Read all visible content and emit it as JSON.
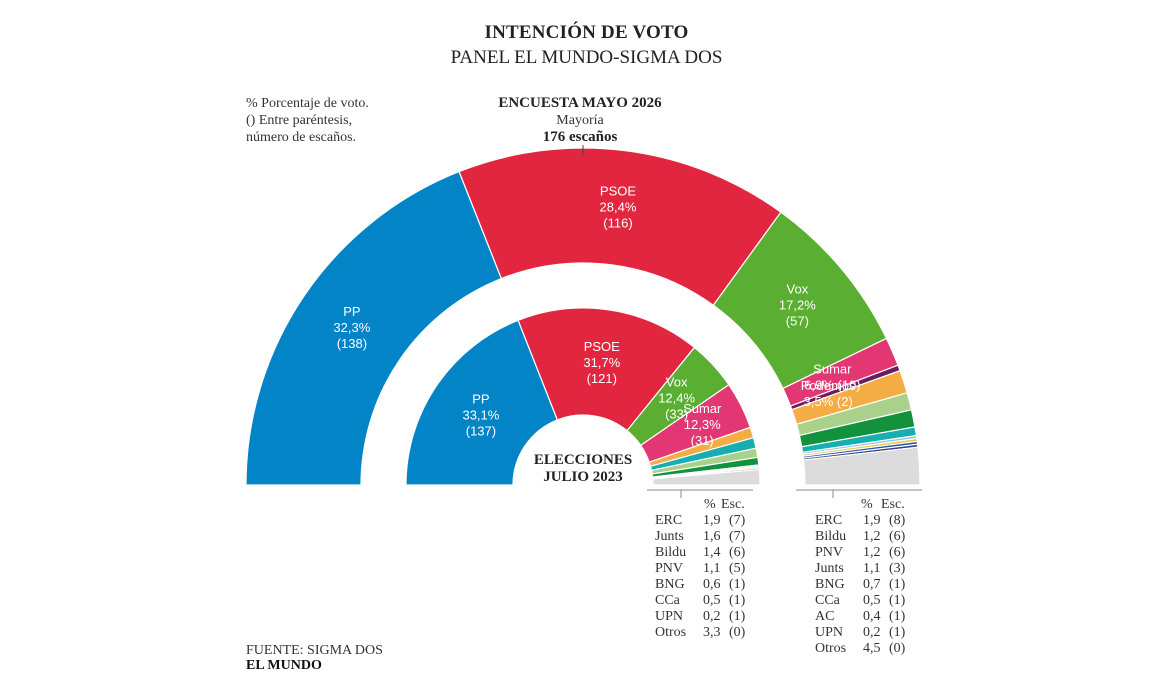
{
  "header": {
    "title": "INTENCIÓN DE VOTO",
    "subtitle": "PANEL EL MUNDO-SIGMA DOS"
  },
  "notes": {
    "line1": "% Porcentaje de voto.",
    "line2": "() Entre paréntesis,",
    "line3": "número de escaños."
  },
  "survey": {
    "title": "ENCUESTA MAYO 2026",
    "majority_label": "Mayoría",
    "majority_seats": "176 escaños"
  },
  "center": {
    "line1": "ELECCIONES",
    "line2": "JULIO 2023"
  },
  "footer": {
    "source": "FUENTE: SIGMA DOS",
    "brand": "EL MUNDO"
  },
  "tables": {
    "elections": {
      "head_pct": "%",
      "head_esc": "Esc.",
      "rows": [
        {
          "name": "ERC",
          "pct": "1,9",
          "seats": "(7)"
        },
        {
          "name": "Junts",
          "pct": "1,6",
          "seats": "(7)"
        },
        {
          "name": "Bildu",
          "pct": "1,4",
          "seats": "(6)"
        },
        {
          "name": "PNV",
          "pct": "1,1",
          "seats": "(5)"
        },
        {
          "name": "BNG",
          "pct": "0,6",
          "seats": "(1)"
        },
        {
          "name": "CCa",
          "pct": "0,5",
          "seats": "(1)"
        },
        {
          "name": "UPN",
          "pct": "0,2",
          "seats": "(1)"
        },
        {
          "name": "Otros",
          "pct": "3,3",
          "seats": "(0)"
        }
      ]
    },
    "survey": {
      "head_pct": "%",
      "head_esc": "Esc.",
      "rows": [
        {
          "name": "ERC",
          "pct": "1,9",
          "seats": "(8)"
        },
        {
          "name": "Bildu",
          "pct": "1,2",
          "seats": "(6)"
        },
        {
          "name": "PNV",
          "pct": "1,2",
          "seats": "(6)"
        },
        {
          "name": "Junts",
          "pct": "1,1",
          "seats": "(3)"
        },
        {
          "name": "BNG",
          "pct": "0,7",
          "seats": "(1)"
        },
        {
          "name": "CCa",
          "pct": "0,5",
          "seats": "(1)"
        },
        {
          "name": "AC",
          "pct": "0,4",
          "seats": "(1)"
        },
        {
          "name": "UPN",
          "pct": "0,2",
          "seats": "(1)"
        },
        {
          "name": "Otros",
          "pct": "4,5",
          "seats": "(0)"
        }
      ]
    }
  },
  "chart_data": [
    {
      "type": "pie",
      "title": "ENCUESTA MAYO 2026",
      "series": [
        {
          "name": "PP",
          "pct": 32.3,
          "seats": 138,
          "label": "PP",
          "value_label": "32,3%",
          "seats_label": "(138)",
          "color": "#0284c7"
        },
        {
          "name": "PSOE",
          "pct": 28.4,
          "seats": 116,
          "label": "PSOE",
          "value_label": "28,4%",
          "seats_label": "(116)",
          "color": "#e3263f"
        },
        {
          "name": "Vox",
          "pct": 17.2,
          "seats": 57,
          "label": "Vox",
          "value_label": "17,2%",
          "seats_label": "(57)",
          "color": "#5aaf32"
        },
        {
          "name": "Sumar",
          "pct": 6.9,
          "seats": 10,
          "label": "Sumar",
          "value_label": "6,9% (10)",
          "seats_label": "",
          "color": "#e23773"
        },
        {
          "name": "Podemos",
          "pct": 3.5,
          "seats": 2,
          "label": "Podemos",
          "value_label": "3,5% (2)",
          "seats_label": "",
          "color": "#6a1e5c"
        },
        {
          "name": "ERC",
          "pct": 1.9,
          "seats": 8,
          "color": "#f4ad44"
        },
        {
          "name": "Bildu",
          "pct": 1.2,
          "seats": 6,
          "color": "#a9d18a"
        },
        {
          "name": "PNV",
          "pct": 1.2,
          "seats": 6,
          "color": "#12923c"
        },
        {
          "name": "Junts",
          "pct": 1.1,
          "seats": 3,
          "color": "#16aeb0"
        },
        {
          "name": "BNG",
          "pct": 0.7,
          "seats": 1,
          "color": "#8ec9e8"
        },
        {
          "name": "CCa",
          "pct": 0.5,
          "seats": 1,
          "color": "#f2c43d"
        },
        {
          "name": "AC",
          "pct": 0.4,
          "seats": 1,
          "color": "#1f5aa6"
        },
        {
          "name": "UPN",
          "pct": 0.2,
          "seats": 1,
          "color": "#3a3f8c"
        },
        {
          "name": "Otros",
          "pct": 4.5,
          "seats": 0,
          "color": "#dcdcdc"
        }
      ]
    },
    {
      "type": "pie",
      "title": "ELECCIONES JULIO 2023",
      "series": [
        {
          "name": "PP",
          "pct": 33.1,
          "seats": 137,
          "label": "PP",
          "value_label": "33,1%",
          "seats_label": "(137)",
          "color": "#0284c7"
        },
        {
          "name": "PSOE",
          "pct": 31.7,
          "seats": 121,
          "label": "PSOE",
          "value_label": "31,7%",
          "seats_label": "(121)",
          "color": "#e3263f"
        },
        {
          "name": "Vox",
          "pct": 12.4,
          "seats": 33,
          "label": "Vox",
          "value_label": "12,4%",
          "seats_label": "(33)",
          "color": "#5aaf32"
        },
        {
          "name": "Sumar",
          "pct": 12.3,
          "seats": 31,
          "label": "Sumar",
          "value_label": "12,3%",
          "seats_label": "(31)",
          "color": "#e23773"
        },
        {
          "name": "ERC",
          "pct": 1.9,
          "seats": 7,
          "color": "#f4ad44"
        },
        {
          "name": "Junts",
          "pct": 1.6,
          "seats": 7,
          "color": "#16aeb0"
        },
        {
          "name": "Bildu",
          "pct": 1.4,
          "seats": 6,
          "color": "#a9d18a"
        },
        {
          "name": "PNV",
          "pct": 1.1,
          "seats": 5,
          "color": "#12923c"
        },
        {
          "name": "BNG",
          "pct": 0.6,
          "seats": 1,
          "color": "#8ec9e8"
        },
        {
          "name": "CCa",
          "pct": 0.5,
          "seats": 1,
          "color": "#f2c43d"
        },
        {
          "name": "UPN",
          "pct": 0.2,
          "seats": 1,
          "color": "#3a3f8c"
        },
        {
          "name": "Otros",
          "pct": 3.3,
          "seats": 0,
          "color": "#dcdcdc"
        }
      ]
    }
  ]
}
